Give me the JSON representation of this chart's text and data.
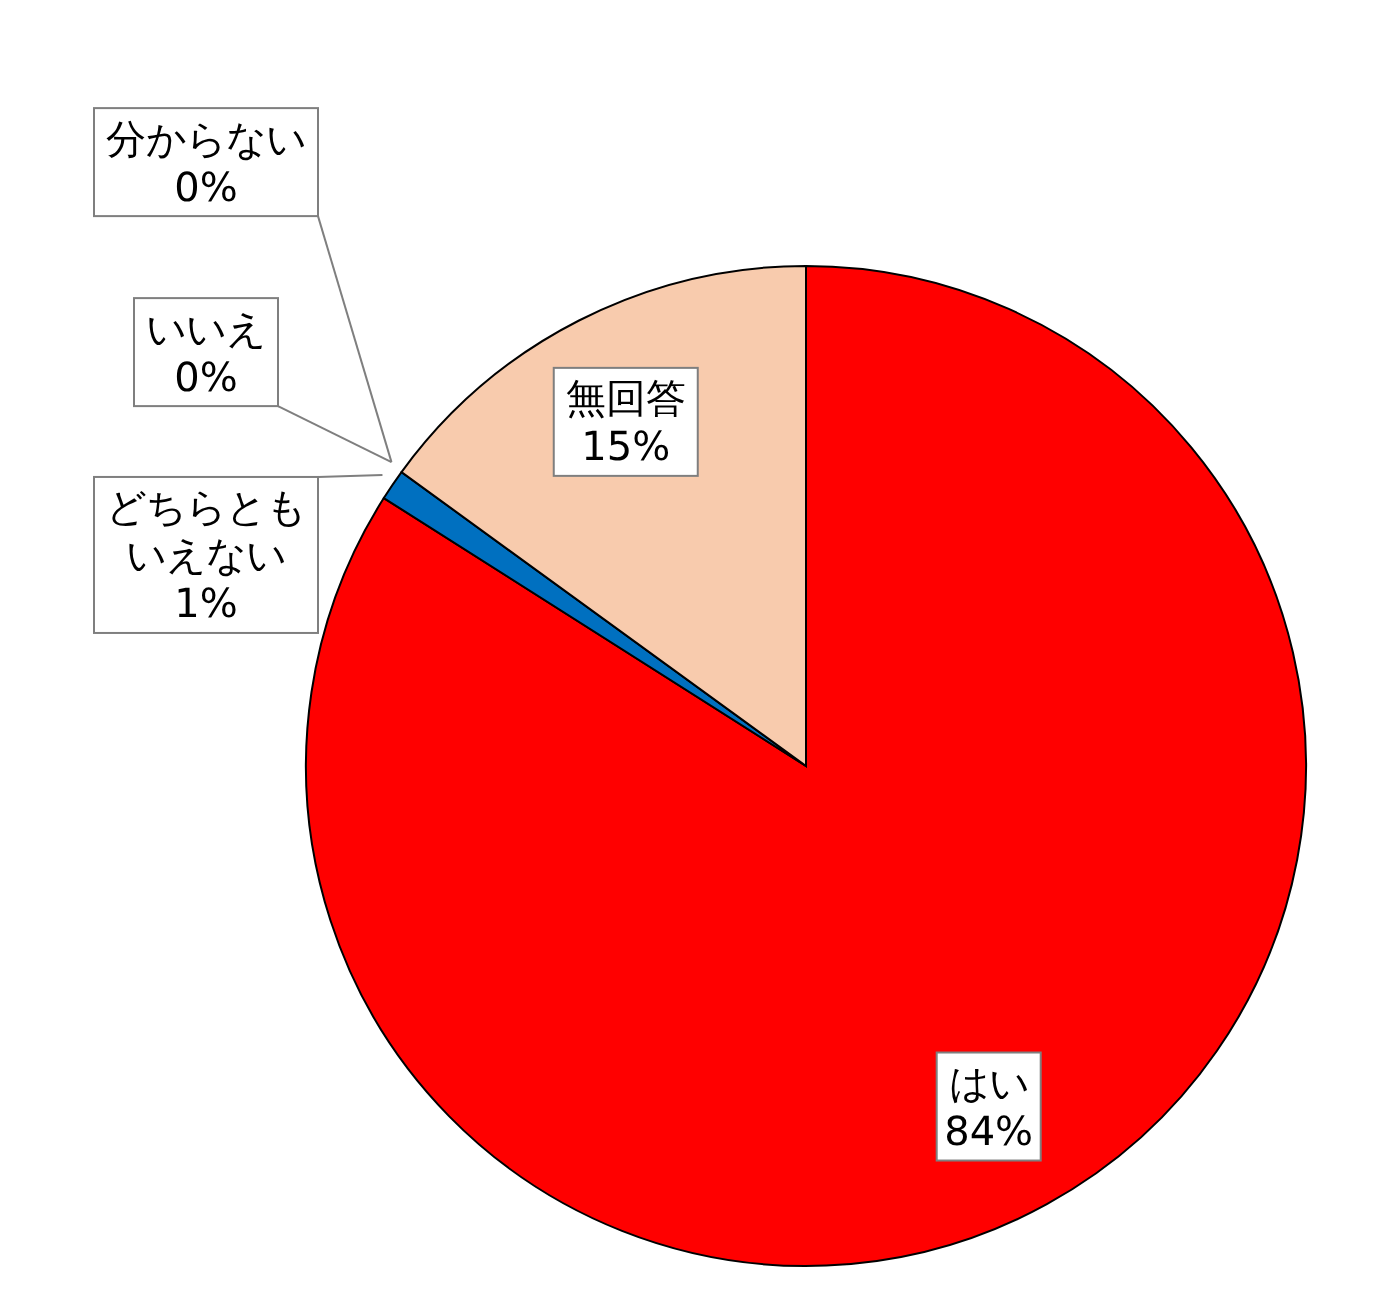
{
  "chart_data": {
    "type": "pie",
    "categories": [
      "はい",
      "どちらともいえない",
      "いいえ",
      "分からない",
      "無回答"
    ],
    "values": [
      84,
      1,
      0,
      0,
      15
    ],
    "value_labels": [
      "84%",
      "1%",
      "0%",
      "0%",
      "15%"
    ],
    "colors": [
      "#ff0000",
      "#0070c0",
      "#1f3864",
      "#000000",
      "#f8cbad"
    ]
  }
}
